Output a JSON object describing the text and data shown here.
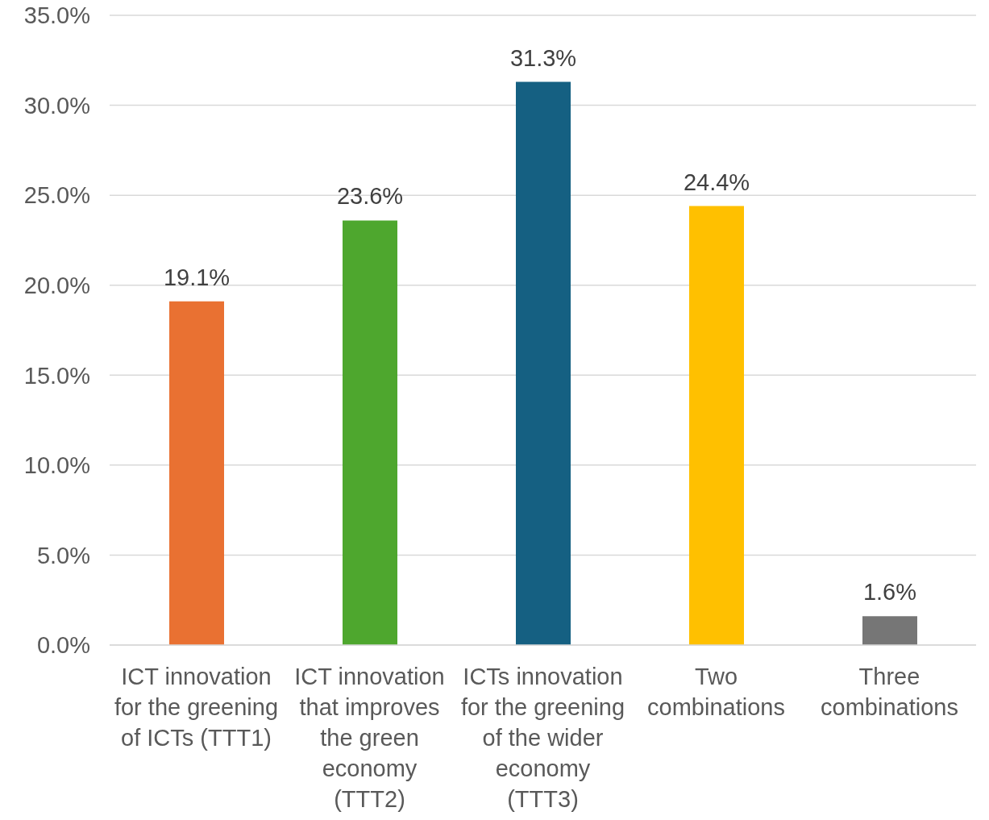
{
  "chart_data": {
    "type": "bar",
    "categories": [
      "ICT innovation for the greening of ICTs (TTT1)",
      "ICT innovation that improves the green economy (TTT2)",
      "ICTs innovation for the greening of the wider economy (TTT3)",
      "Two combinations",
      "Three combinations"
    ],
    "values": [
      19.1,
      23.6,
      31.3,
      24.4,
      1.6
    ],
    "colors": [
      "#e97132",
      "#4ea72e",
      "#156082",
      "#ffc000",
      "#767676"
    ],
    "value_labels": [
      "19.1%",
      "23.6%",
      "31.3%",
      "24.4%",
      "1.6%"
    ],
    "ylim": [
      0,
      35
    ],
    "yticks": [
      {
        "value": 0,
        "label": "0.0%"
      },
      {
        "value": 5,
        "label": "5.0%"
      },
      {
        "value": 10,
        "label": "10.0%"
      },
      {
        "value": 15,
        "label": "15.0%"
      },
      {
        "value": 20,
        "label": "20.0%"
      },
      {
        "value": 25,
        "label": "25.0%"
      },
      {
        "value": 30,
        "label": "30.0%"
      },
      {
        "value": 35,
        "label": "35.0%"
      }
    ],
    "grid": "y"
  }
}
